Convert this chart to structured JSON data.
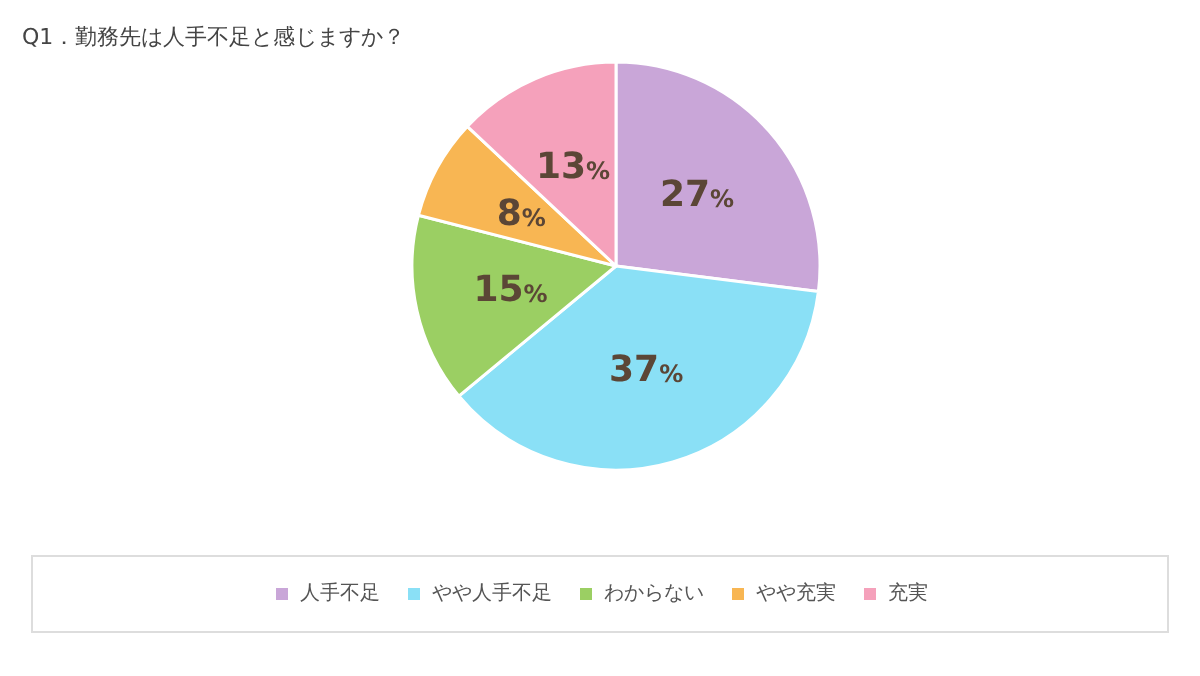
{
  "chart_data": {
    "type": "pie",
    "title": "Q1．勤務先は人手不足と感じますか？",
    "categories": [
      "人手不足",
      "やや人手不足",
      "わからない",
      "やや充実",
      "充実"
    ],
    "values": [
      27,
      37,
      15,
      8,
      13
    ],
    "colors": [
      "#c9a6d8",
      "#8ae0f6",
      "#9bcf63",
      "#f8b653",
      "#f5a1bb"
    ],
    "value_labels": [
      "27%",
      "37%",
      "15%",
      "8%",
      "13%"
    ],
    "legend": "bottom"
  }
}
